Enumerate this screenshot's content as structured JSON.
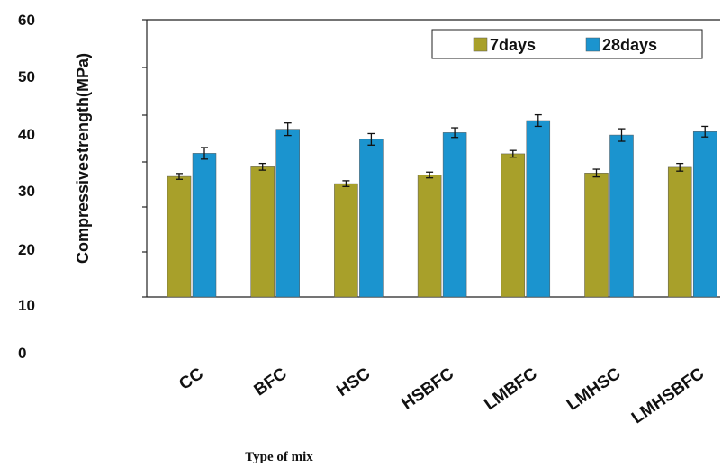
{
  "chart_data": {
    "type": "bar",
    "title": "",
    "xlabel": "Type of mix",
    "ylabel": "Compressivestrength(MPa)",
    "ylim": [
      0,
      60
    ],
    "yticks": [
      "0",
      "10",
      "20",
      "30",
      "40",
      "50",
      "60"
    ],
    "categories": [
      "CC",
      "BFC",
      "HSC",
      "HSBFC",
      "LMBFC",
      "LMHSC",
      "LMHSBFC"
    ],
    "series": [
      {
        "name": "7days",
        "color": "#a8a02a",
        "values": [
          35.5,
          37.5,
          34,
          35.8,
          40.2,
          36.2,
          37.4
        ],
        "errors": [
          0.6,
          0.7,
          0.6,
          0.6,
          0.7,
          0.8,
          0.8
        ]
      },
      {
        "name": "28days",
        "color": "#1b94cf",
        "values": [
          40.3,
          45.3,
          43.2,
          44.6,
          47.1,
          44.1,
          44.8
        ],
        "errors": [
          1.2,
          1.3,
          1.2,
          1.0,
          1.2,
          1.3,
          1.1
        ]
      }
    ],
    "legend_position": "top-right",
    "error_bars": true,
    "grid": false
  }
}
